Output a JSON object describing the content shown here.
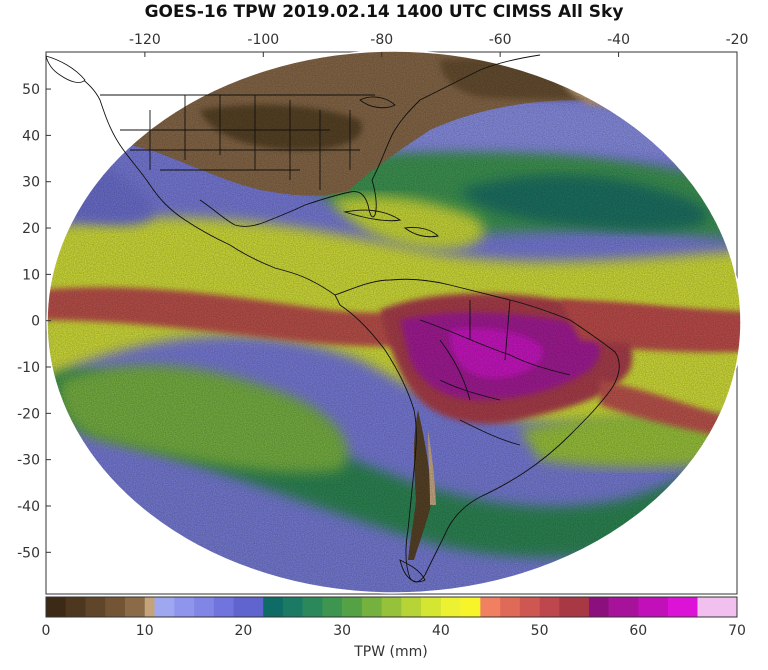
{
  "title": "GOES-16 TPW 2019.02.14 1400 UTC CIMSS All Sky",
  "map": {
    "lon_ticks": [
      "-120",
      "-100",
      "-80",
      "-60",
      "-40",
      "-20"
    ],
    "lat_ticks": [
      "50",
      "40",
      "30",
      "20",
      "10",
      "0",
      "-10",
      "-20",
      "-30",
      "-40",
      "-50"
    ],
    "lon_tick_values": [
      -120,
      -100,
      -80,
      -60,
      -40,
      -20
    ],
    "lat_tick_values": [
      50,
      40,
      30,
      20,
      10,
      0,
      -10,
      -20,
      -30,
      -40,
      -50
    ],
    "lon_range": [
      -136.7,
      -20
    ],
    "lat_range": [
      -59,
      58
    ],
    "background_color": "#ffffff",
    "land_colors": {
      "dry_north": "#8a6b4a",
      "cool_lilac": "#7c7fe0",
      "moist_green": "#2f8a57",
      "yellow": "#e8ee30",
      "red": "#c05050",
      "magenta": "#b020b0"
    }
  },
  "colorbar": {
    "label": "TPW (mm)",
    "ticks": [
      "0",
      "10",
      "20",
      "30",
      "40",
      "50",
      "60",
      "70"
    ],
    "tick_values": [
      0,
      10,
      20,
      30,
      40,
      50,
      60,
      70
    ],
    "range": [
      0,
      70
    ],
    "bins": [
      {
        "from": 0,
        "to": 2,
        "color": "#3d2a16"
      },
      {
        "from": 2,
        "to": 4,
        "color": "#4d371f"
      },
      {
        "from": 4,
        "to": 6,
        "color": "#5f4529"
      },
      {
        "from": 6,
        "to": 8,
        "color": "#735535"
      },
      {
        "from": 8,
        "to": 10,
        "color": "#8a6a47"
      },
      {
        "from": 10,
        "to": 11,
        "color": "#c4a27a"
      },
      {
        "from": 11,
        "to": 13,
        "color": "#9fa7f0"
      },
      {
        "from": 13,
        "to": 15,
        "color": "#8f95ec"
      },
      {
        "from": 15,
        "to": 17,
        "color": "#8085e6"
      },
      {
        "from": 17,
        "to": 19,
        "color": "#7074dc"
      },
      {
        "from": 19,
        "to": 22,
        "color": "#5f64cf"
      },
      {
        "from": 22,
        "to": 24,
        "color": "#0f6b66"
      },
      {
        "from": 24,
        "to": 26,
        "color": "#1a7a64"
      },
      {
        "from": 26,
        "to": 28,
        "color": "#2a885a"
      },
      {
        "from": 28,
        "to": 30,
        "color": "#3d9550"
      },
      {
        "from": 30,
        "to": 32,
        "color": "#55a246"
      },
      {
        "from": 32,
        "to": 34,
        "color": "#74b13f"
      },
      {
        "from": 34,
        "to": 36,
        "color": "#95c23a"
      },
      {
        "from": 36,
        "to": 38,
        "color": "#b6d436"
      },
      {
        "from": 38,
        "to": 40,
        "color": "#d4e532"
      },
      {
        "from": 40,
        "to": 42,
        "color": "#ecf232"
      },
      {
        "from": 42,
        "to": 44,
        "color": "#f7f52a"
      },
      {
        "from": 44,
        "to": 46,
        "color": "#f08060"
      },
      {
        "from": 46,
        "to": 48,
        "color": "#e06a58"
      },
      {
        "from": 48,
        "to": 50,
        "color": "#cf5752"
      },
      {
        "from": 50,
        "to": 52,
        "color": "#bd474c"
      },
      {
        "from": 52,
        "to": 55,
        "color": "#a83944"
      },
      {
        "from": 55,
        "to": 57,
        "color": "#8c0f7e"
      },
      {
        "from": 57,
        "to": 60,
        "color": "#a6129a"
      },
      {
        "from": 60,
        "to": 63,
        "color": "#c10fba"
      },
      {
        "from": 63,
        "to": 66,
        "color": "#dc12d6"
      },
      {
        "from": 66,
        "to": 70,
        "color": "#f1c0ee"
      }
    ]
  }
}
